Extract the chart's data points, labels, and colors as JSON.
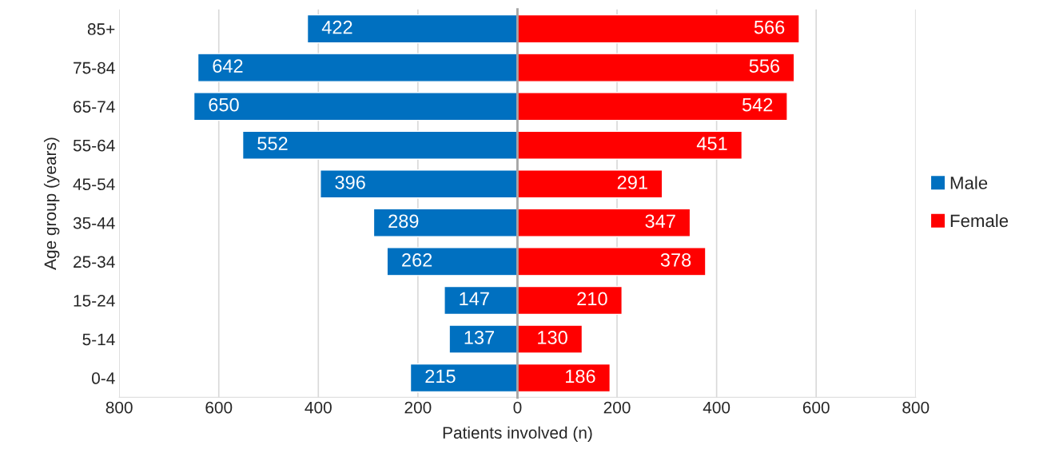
{
  "chart_data": [
    {
      "type": "bar",
      "orientation": "horizontal",
      "data_labels": true,
      "xlabel": "Patients involved (n)",
      "ylabel": "Age group (years)",
      "categories": [
        "85+",
        "75-84",
        "65-74",
        "55-64",
        "45-54",
        "35-44",
        "25-34",
        "15-24",
        "5-14",
        "0-4"
      ],
      "series": [
        {
          "name": "Male",
          "color": "#0070c0",
          "values": [
            422,
            642,
            650,
            552,
            396,
            289,
            262,
            147,
            137,
            215
          ]
        }
      ],
      "xlim": [
        800,
        0
      ],
      "xticks": [
        800,
        600,
        400,
        200,
        {
          "value": 0,
          "label": null
        }
      ],
      "grid": "x",
      "legend": "right"
    },
    {
      "type": "bar",
      "orientation": "horizontal",
      "data_labels": true,
      "tick_labels": "x",
      "categories": [
        null,
        null,
        null,
        null,
        null,
        null,
        null,
        null,
        null,
        null
      ],
      "series": [
        {
          "name": "Female",
          "color": "#ff0000",
          "values": [
            566,
            556,
            542,
            451,
            291,
            347,
            378,
            210,
            130,
            186
          ]
        }
      ],
      "xlim": [
        0,
        800
      ],
      "xticks": [
        0,
        200,
        400,
        600,
        800
      ],
      "grid": "x",
      "legend": "right"
    }
  ]
}
